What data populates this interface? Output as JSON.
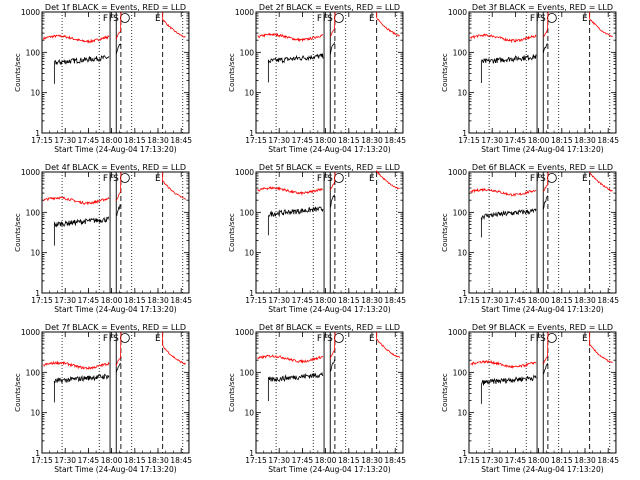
{
  "chart_data": {
    "type": "line",
    "layout": {
      "rows": 3,
      "cols": 3
    },
    "yscale": "log",
    "ylim": [
      1,
      1000
    ],
    "ytick_values": [
      1,
      10,
      100,
      1000
    ],
    "ytick_labels": [
      "1",
      "10",
      "100",
      "1000"
    ],
    "xlim": [
      "17:15",
      "18:50"
    ],
    "xtick_labels": [
      "17:15",
      "17:30",
      "17:45",
      "18:00",
      "18:15",
      "18:30",
      "18:45"
    ],
    "xtick_values": [
      "17:15",
      "17:30",
      "17:45",
      "18:00",
      "18:15",
      "18:30",
      "18:45"
    ],
    "xlabel": "Start Time (24-Aug-04 17:13:20)",
    "ylabel": "Counts/sec",
    "colors": {
      "events": "#000000",
      "lld": "#ff0000"
    },
    "markers": [
      {
        "label": "F",
        "time": "17:59",
        "style": "solid"
      },
      {
        "label": "F",
        "time": "18:03",
        "style": "solid"
      },
      {
        "label": "S",
        "time": "18:06",
        "style": "dashed"
      },
      {
        "label": "E",
        "time": "18:33",
        "style": "dashed"
      }
    ],
    "dotted_lines": [
      "17:28",
      "17:52",
      "18:13",
      "18:46"
    ],
    "panels": [
      {
        "title": "Det 1f BLACK = Events, RED = LLD",
        "events_base": 55,
        "lld_base": 220
      },
      {
        "title": "Det 2f BLACK = Events, RED = LLD",
        "events_base": 60,
        "lld_base": 240
      },
      {
        "title": "Det 3f BLACK = Events, RED = LLD",
        "events_base": 58,
        "lld_base": 230
      },
      {
        "title": "Det 4f BLACK = Events, RED = LLD",
        "events_base": 50,
        "lld_base": 200
      },
      {
        "title": "Det 5f BLACK = Events, RED = LLD",
        "events_base": 90,
        "lld_base": 350
      },
      {
        "title": "Det 6f BLACK = Events, RED = LLD",
        "events_base": 80,
        "lld_base": 320
      },
      {
        "title": "Det 7f BLACK = Events, RED = LLD",
        "events_base": 60,
        "lld_base": 150
      },
      {
        "title": "Det 8f BLACK = Events, RED = LLD",
        "events_base": 65,
        "lld_base": 220
      },
      {
        "title": "Det 9f BLACK = Events, RED = LLD",
        "events_base": 55,
        "lld_base": 160
      }
    ]
  }
}
